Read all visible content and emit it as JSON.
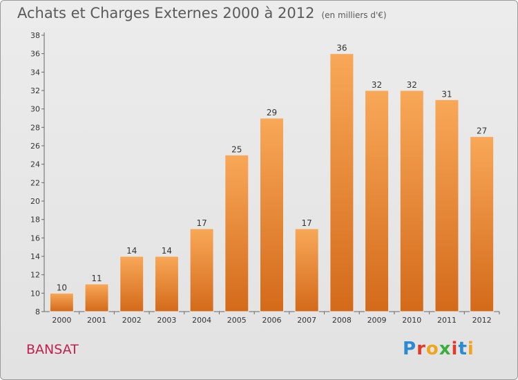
{
  "header": {
    "title": "Achats et Charges Externes 2000 à 2012",
    "subtitle": "(en milliers d'€)"
  },
  "footer": {
    "location": "BANSAT",
    "logo_text": "Proxiti"
  },
  "colors": {
    "bar_light": "#f8a858",
    "bar_dark": "#d36a1a",
    "location": "#c3204f"
  },
  "chart_data": {
    "type": "bar",
    "categories": [
      "2000",
      "2001",
      "2002",
      "2003",
      "2004",
      "2005",
      "2006",
      "2007",
      "2008",
      "2009",
      "2010",
      "2011",
      "2012"
    ],
    "values": [
      10,
      11,
      14,
      14,
      17,
      25,
      29,
      17,
      36,
      32,
      32,
      31,
      27
    ],
    "ylim": [
      8,
      38
    ],
    "yticks": [
      8,
      10,
      12,
      14,
      16,
      18,
      20,
      22,
      24,
      26,
      28,
      30,
      32,
      34,
      36,
      38
    ],
    "grid": false,
    "legend": "none"
  }
}
